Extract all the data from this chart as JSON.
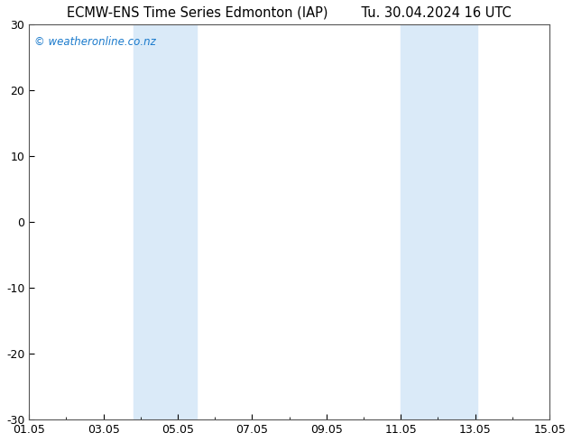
{
  "title_left": "ECMW-ENS Time Series Edmonton (IAP)",
  "title_right": "Tu. 30.04.2024 16 UTC",
  "watermark": "© weatheronline.co.nz",
  "watermark_color": "#1a7acc",
  "xlim": [
    1,
    15
  ],
  "ylim": [
    -30,
    30
  ],
  "xticks": [
    1,
    3,
    5,
    7,
    9,
    11,
    13,
    15
  ],
  "xticklabels": [
    "01.05",
    "03.05",
    "05.05",
    "07.05",
    "09.05",
    "11.05",
    "13.05",
    "15.05"
  ],
  "yticks": [
    -30,
    -20,
    -10,
    0,
    10,
    20,
    30
  ],
  "yticklabels": [
    "-30",
    "-20",
    "-10",
    "0",
    "10",
    "20",
    "30"
  ],
  "background_color": "#ffffff",
  "plot_bg_color": "#ffffff",
  "shaded_bands": [
    {
      "x_start": 3.8,
      "x_end": 4.5,
      "color": "#daeaf8"
    },
    {
      "x_start": 4.5,
      "x_end": 5.5,
      "color": "#daeaf8"
    },
    {
      "x_start": 11.0,
      "x_end": 11.5,
      "color": "#daeaf8"
    },
    {
      "x_start": 11.5,
      "x_end": 13.05,
      "color": "#daeaf8"
    }
  ],
  "grid_color": "#cccccc",
  "title_fontsize": 10.5,
  "tick_fontsize": 9,
  "watermark_fontsize": 8.5,
  "spine_color": "#555555",
  "minor_xtick_count": 1
}
